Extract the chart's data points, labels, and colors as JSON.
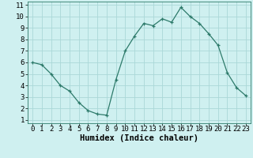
{
  "x": [
    0,
    1,
    2,
    3,
    4,
    5,
    6,
    7,
    8,
    9,
    10,
    11,
    12,
    13,
    14,
    15,
    16,
    17,
    18,
    19,
    20,
    21,
    22,
    23
  ],
  "y": [
    6.0,
    5.8,
    5.0,
    4.0,
    3.5,
    2.5,
    1.8,
    1.5,
    1.4,
    4.5,
    7.0,
    8.3,
    9.4,
    9.2,
    9.8,
    9.5,
    10.8,
    10.0,
    9.4,
    8.5,
    7.5,
    5.1,
    3.8,
    3.1
  ],
  "xlabel": "Humidex (Indice chaleur)",
  "xlim_min": -0.5,
  "xlim_max": 23.5,
  "ylim_min": 0.7,
  "ylim_max": 11.3,
  "xticks": [
    0,
    1,
    2,
    3,
    4,
    5,
    6,
    7,
    8,
    9,
    10,
    11,
    12,
    13,
    14,
    15,
    16,
    17,
    18,
    19,
    20,
    21,
    22,
    23
  ],
  "yticks": [
    1,
    2,
    3,
    4,
    5,
    6,
    7,
    8,
    9,
    10,
    11
  ],
  "line_color": "#2d7a6a",
  "marker": "+",
  "bg_color": "#cff0f0",
  "grid_color": "#aad8d8",
  "label_fontsize": 7.5,
  "tick_fontsize": 6.5
}
